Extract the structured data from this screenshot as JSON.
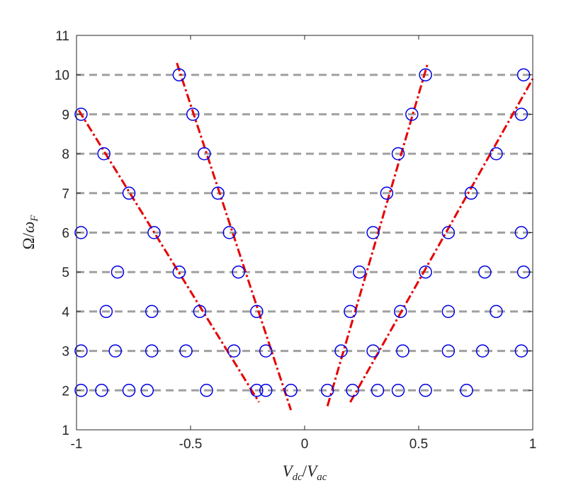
{
  "chart_data": {
    "type": "scatter",
    "title": "",
    "xlabel": "V_dc/V_ac",
    "ylabel": "Ω/ω_F",
    "xlabel_parts": {
      "base1": "V",
      "sub1": "dc",
      "slash": "/",
      "base2": "V",
      "sub2": "ac"
    },
    "ylabel_parts": {
      "base1": "Ω",
      "slash": "/",
      "base2": "ω",
      "sub2": "F"
    },
    "xlim": [
      -1,
      1
    ],
    "ylim": [
      1,
      11
    ],
    "xticks": [
      -1,
      -0.5,
      0,
      0.5,
      1
    ],
    "xtick_labels": [
      "-1",
      "-0.5",
      "0",
      "0.5",
      "1"
    ],
    "yticks": [
      1,
      2,
      3,
      4,
      5,
      6,
      7,
      8,
      9,
      10,
      11
    ],
    "ytick_labels": [
      "1",
      "2",
      "3",
      "4",
      "5",
      "6",
      "7",
      "8",
      "9",
      "10",
      "11"
    ],
    "grid": false,
    "legend": "none",
    "horizontal_reference_lines": {
      "y": [
        2,
        3,
        4,
        5,
        6,
        7,
        8,
        9,
        10
      ],
      "style": "dashed",
      "color": "#a0a0a0"
    },
    "series": [
      {
        "marker": "open-circle",
        "color": "#0000e6",
        "points": [
          [
            -0.98,
            2
          ],
          [
            -0.89,
            2
          ],
          [
            -0.77,
            2
          ],
          [
            -0.69,
            2
          ],
          [
            -0.43,
            2
          ],
          [
            -0.21,
            2
          ],
          [
            -0.17,
            2
          ],
          [
            -0.06,
            2
          ],
          [
            0.1,
            2
          ],
          [
            0.21,
            2
          ],
          [
            0.32,
            2
          ],
          [
            0.41,
            2
          ],
          [
            0.53,
            2
          ],
          [
            0.71,
            2
          ],
          [
            -0.98,
            3
          ],
          [
            -0.83,
            3
          ],
          [
            -0.67,
            3
          ],
          [
            -0.52,
            3
          ],
          [
            -0.31,
            3
          ],
          [
            -0.17,
            3
          ],
          [
            0.16,
            3
          ],
          [
            0.3,
            3
          ],
          [
            0.43,
            3
          ],
          [
            0.63,
            3
          ],
          [
            0.78,
            3
          ],
          [
            0.95,
            3
          ],
          [
            -0.87,
            4
          ],
          [
            -0.67,
            4
          ],
          [
            -0.46,
            4
          ],
          [
            -0.21,
            4
          ],
          [
            0.2,
            4
          ],
          [
            0.42,
            4
          ],
          [
            0.63,
            4
          ],
          [
            0.84,
            4
          ],
          [
            -0.82,
            5
          ],
          [
            -0.55,
            5
          ],
          [
            -0.29,
            5
          ],
          [
            0.24,
            5
          ],
          [
            0.53,
            5
          ],
          [
            0.79,
            5
          ],
          [
            0.96,
            5
          ],
          [
            -0.98,
            6
          ],
          [
            -0.66,
            6
          ],
          [
            -0.33,
            6
          ],
          [
            0.3,
            6
          ],
          [
            0.63,
            6
          ],
          [
            0.95,
            6
          ],
          [
            -0.77,
            7
          ],
          [
            -0.38,
            7
          ],
          [
            0.36,
            7
          ],
          [
            0.73,
            7
          ],
          [
            -0.88,
            8
          ],
          [
            -0.44,
            8
          ],
          [
            0.41,
            8
          ],
          [
            0.84,
            8
          ],
          [
            -0.98,
            9
          ],
          [
            -0.49,
            9
          ],
          [
            0.47,
            9
          ],
          [
            0.95,
            9
          ],
          [
            -0.55,
            10
          ],
          [
            0.53,
            10
          ],
          [
            0.96,
            10
          ]
        ]
      },
      {
        "marker": "none",
        "line": "dash-dot",
        "color": "#e60000",
        "segments": [
          [
            [
              -0.99,
              9.1
            ],
            [
              -0.2,
              1.7
            ]
          ],
          [
            [
              -0.56,
              10.3
            ],
            [
              -0.06,
              1.5
            ]
          ],
          [
            [
              0.1,
              1.6
            ],
            [
              0.54,
              10.3
            ]
          ],
          [
            [
              0.2,
              1.7
            ],
            [
              1.0,
              9.9
            ]
          ]
        ]
      }
    ]
  }
}
